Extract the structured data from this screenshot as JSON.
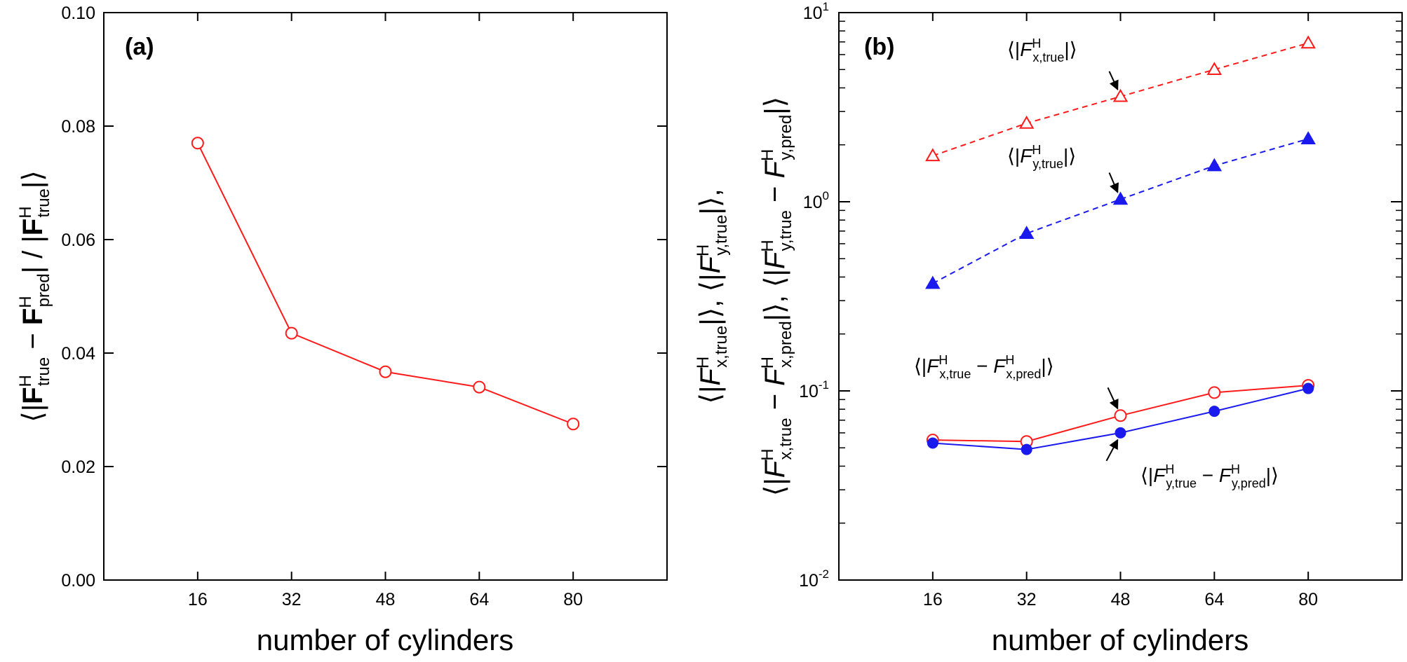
{
  "chart_data": [
    {
      "type": "line",
      "panel_label": "(a)",
      "xlabel": "number of cylinders",
      "ylabel": {
        "open": "⟨|",
        "a": "F",
        "a_sup": "H",
        "a_sub": "true",
        "minus": " − ",
        "b": "F",
        "b_sup": "H",
        "b_sub": "pred",
        "mid": "| / |",
        "c": "F",
        "c_sup": "H",
        "c_sub": "true",
        "close": "|⟩"
      },
      "x": [
        16,
        32,
        48,
        64,
        80
      ],
      "x_ticks": [
        "16",
        "32",
        "48",
        "64",
        "80"
      ],
      "xlim": [
        0,
        96
      ],
      "y_ticks": [
        "0.00",
        "0.02",
        "0.04",
        "0.06",
        "0.08",
        "0.10"
      ],
      "ylim": [
        0,
        0.1
      ],
      "series": [
        {
          "values": [
            0.077,
            0.0435,
            0.0367,
            0.034,
            0.0275
          ],
          "color": "#ff1a1a",
          "marker": "open-circle",
          "linestyle": "solid"
        }
      ]
    },
    {
      "type": "line",
      "panel_label": "(b)",
      "xlabel": "number of cylinders",
      "ylabel_line1": {
        "p1_open": "⟨|",
        "p1_F": "F",
        "p1_sup": "H",
        "p1_sub": "x,true",
        "p1_close": "|⟩, ",
        "p2_open": "⟨|",
        "p2_F": "F",
        "p2_sup": "H",
        "p2_sub": "y,true",
        "p2_close": "|⟩,"
      },
      "ylabel_line2": {
        "p1_open": "⟨|",
        "p1_F1": "F",
        "p1_sup1": "H",
        "p1_sub1": "x,true",
        "p1_minus": " − ",
        "p1_F2": "F",
        "p1_sup2": "H",
        "p1_sub2": "x,pred",
        "p1_close": "|⟩, ",
        "p2_open": "⟨|",
        "p2_F1": "F",
        "p2_sup1": "H",
        "p2_sub1": "y,true",
        "p2_minus": " − ",
        "p2_F2": "F",
        "p2_sup2": "H",
        "p2_sub2": "y,pred",
        "p2_close": "|⟩"
      },
      "x": [
        16,
        32,
        48,
        64,
        80
      ],
      "x_ticks": [
        "16",
        "32",
        "48",
        "64",
        "80"
      ],
      "xlim": [
        0,
        96
      ],
      "y_scale": "log",
      "ylim": [
        0.01,
        10
      ],
      "y_ticks": [
        {
          "base": "10",
          "exp": "-2"
        },
        {
          "base": "10",
          "exp": "-1"
        },
        {
          "base": "10",
          "exp": "0"
        },
        {
          "base": "10",
          "exp": "1"
        }
      ],
      "series": [
        {
          "values": [
            1.75,
            2.6,
            3.6,
            5.0,
            6.9
          ],
          "color": "#ff1a1a",
          "marker": "open-triangle",
          "linestyle": "dashed"
        },
        {
          "values": [
            0.37,
            0.68,
            1.03,
            1.55,
            2.15
          ],
          "color": "#1a1aee",
          "marker": "filled-triangle",
          "linestyle": "dashed"
        },
        {
          "values": [
            0.055,
            0.054,
            0.074,
            0.098,
            0.107
          ],
          "color": "#ff1a1a",
          "marker": "open-circle",
          "linestyle": "solid"
        },
        {
          "values": [
            0.053,
            0.049,
            0.06,
            0.078,
            0.103
          ],
          "color": "#1a1aee",
          "marker": "filled-circle",
          "linestyle": "solid"
        }
      ],
      "annotations": [
        {
          "series": 0,
          "point_index": 2,
          "open": "⟨|",
          "F1": "F",
          "sup1": "H",
          "sub1": "x,true",
          "minus": "",
          "F2": "",
          "sup2": "",
          "sub2": "",
          "close": "|⟩"
        },
        {
          "series": 1,
          "point_index": 2,
          "open": "⟨|",
          "F1": "F",
          "sup1": "H",
          "sub1": "y,true",
          "minus": "",
          "F2": "",
          "sup2": "",
          "sub2": "",
          "close": "|⟩"
        },
        {
          "series": 2,
          "point_index": 2,
          "open": "⟨|",
          "F1": "F",
          "sup1": "H",
          "sub1": "x,true",
          "minus": " − ",
          "F2": "F",
          "sup2": "H",
          "sub2": "x,pred",
          "close": "|⟩"
        },
        {
          "series": 3,
          "point_index": 2,
          "open": "⟨|",
          "F1": "F",
          "sup1": "H",
          "sub1": "y,true",
          "minus": " − ",
          "F2": "F",
          "sup2": "H",
          "sub2": "y,pred",
          "close": "|⟩"
        }
      ]
    }
  ]
}
